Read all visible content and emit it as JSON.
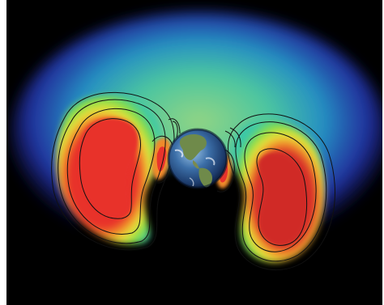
{
  "image": {
    "subject": "earth-radiation-belts",
    "background_color": "#000000",
    "colors": {
      "outer_haze": "#2a4bd8",
      "mid_haze": "#3fc7b6",
      "green_zone": "#6fdc4a",
      "yellow_zone": "#e8e23a",
      "orange_zone": "#f08a2a",
      "core_red": "#e8332c",
      "contour": "#111111"
    }
  }
}
